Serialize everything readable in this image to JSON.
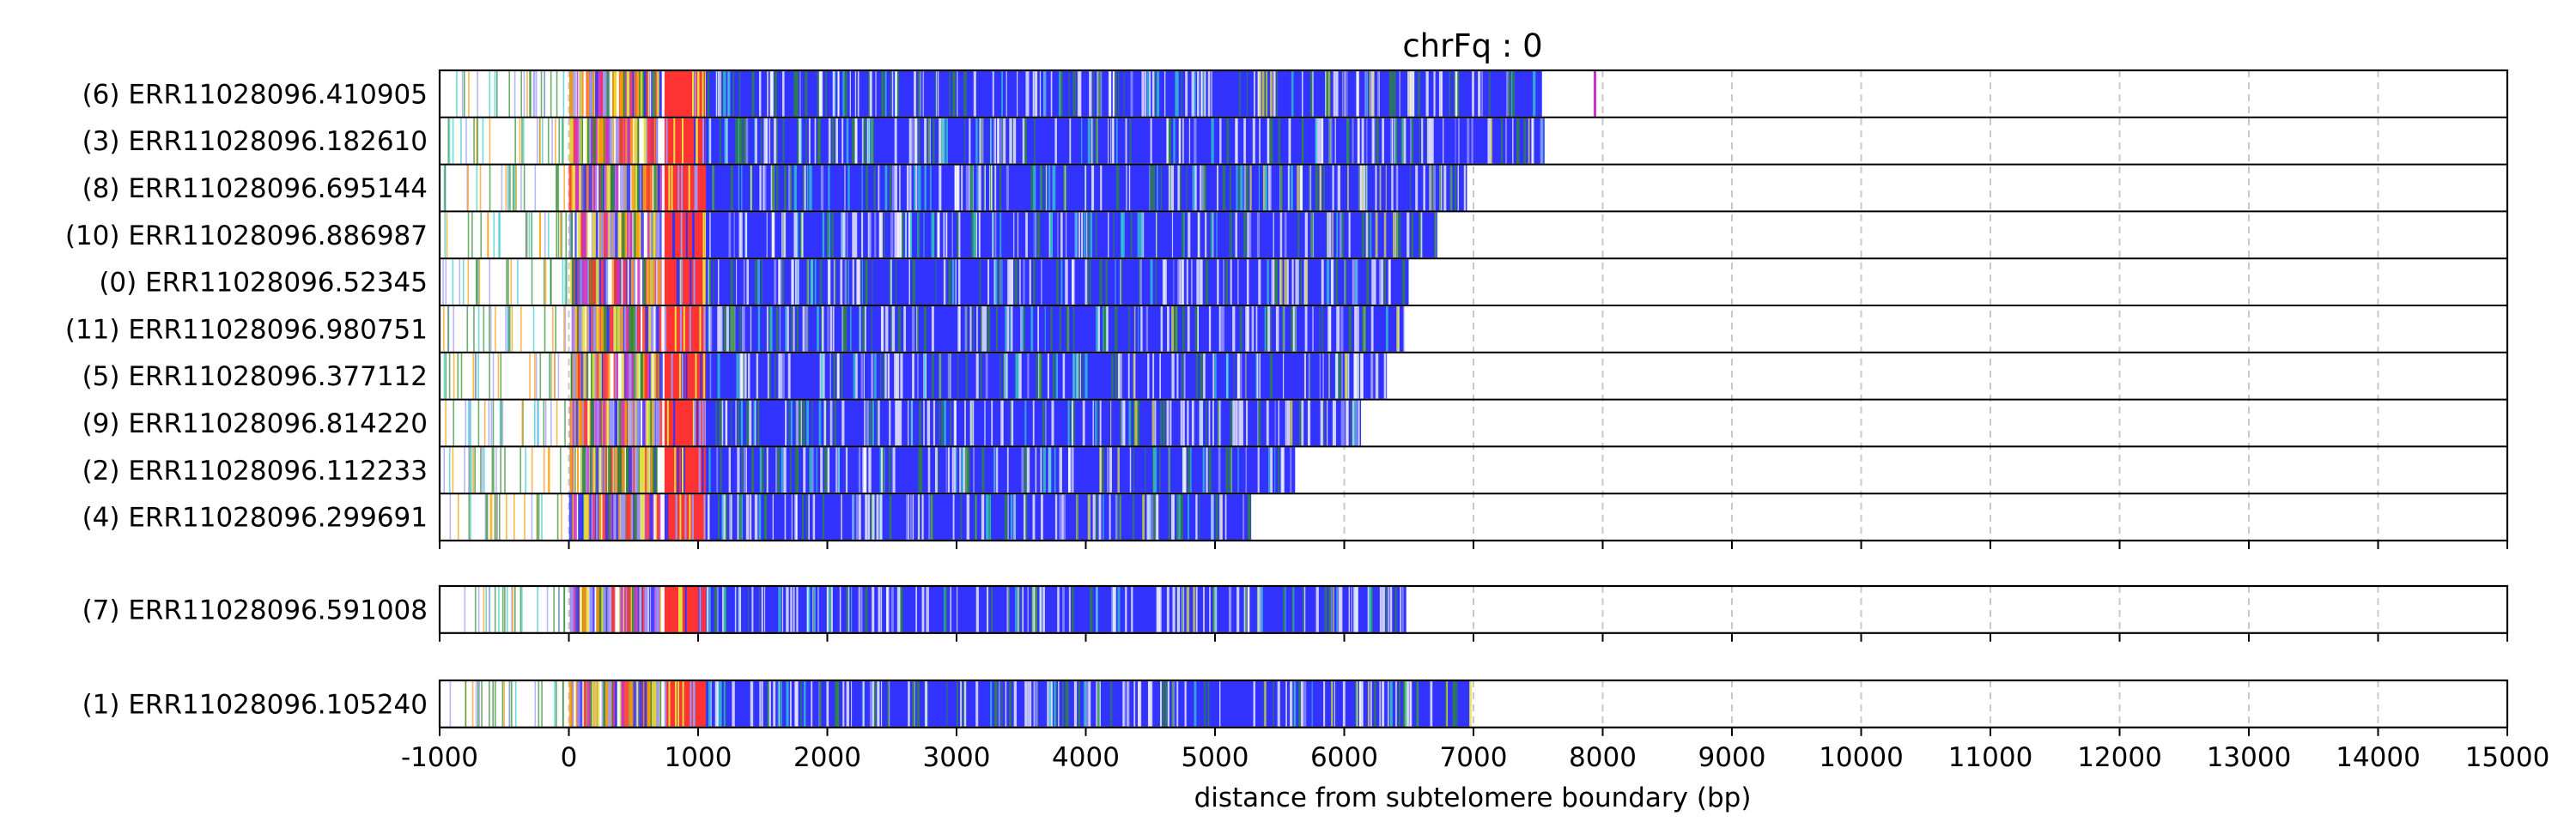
{
  "chart_data": {
    "type": "bar",
    "title": "chrFq : 0",
    "xlabel": "distance from subtelomere boundary (bp)",
    "xlim": [
      -1000,
      15000
    ],
    "xticks": [
      -1000,
      0,
      1000,
      2000,
      3000,
      4000,
      5000,
      6000,
      7000,
      8000,
      9000,
      10000,
      11000,
      12000,
      13000,
      14000,
      15000
    ],
    "grid": "x-dashed",
    "groups": [
      {
        "reads": [
          {
            "label": "(6) ERR11028096.410905",
            "end": 7530,
            "mark": 7930
          },
          {
            "label": "(3) ERR11028096.182610",
            "end": 7550
          },
          {
            "label": "(8) ERR11028096.695144",
            "end": 6950
          },
          {
            "label": "(10) ERR11028096.886987",
            "end": 6720
          },
          {
            "label": "(0) ERR11028096.52345",
            "end": 6500
          },
          {
            "label": "(11) ERR11028096.980751",
            "end": 6470
          },
          {
            "label": "(5) ERR11028096.377112",
            "end": 6330
          },
          {
            "label": "(9) ERR11028096.814220",
            "end": 6130
          },
          {
            "label": "(2) ERR11028096.112233",
            "end": 5620
          },
          {
            "label": "(4) ERR11028096.299691",
            "end": 5280
          }
        ]
      },
      {
        "reads": [
          {
            "label": "(7) ERR11028096.591008",
            "end": 6480
          }
        ]
      },
      {
        "reads": [
          {
            "label": "(1) ERR11028096.105240",
            "end": 6970
          }
        ]
      }
    ],
    "colors": {
      "main_repeat": "#3333ff",
      "red_band": "#ff3333",
      "green": "#2e8b2e",
      "yellow": "#e0e040",
      "orange": "#ff9900",
      "cyan": "#33cccc",
      "magenta": "#cc33cc",
      "light_blue": "#9999ff",
      "grid": "#c8c8c8"
    }
  }
}
